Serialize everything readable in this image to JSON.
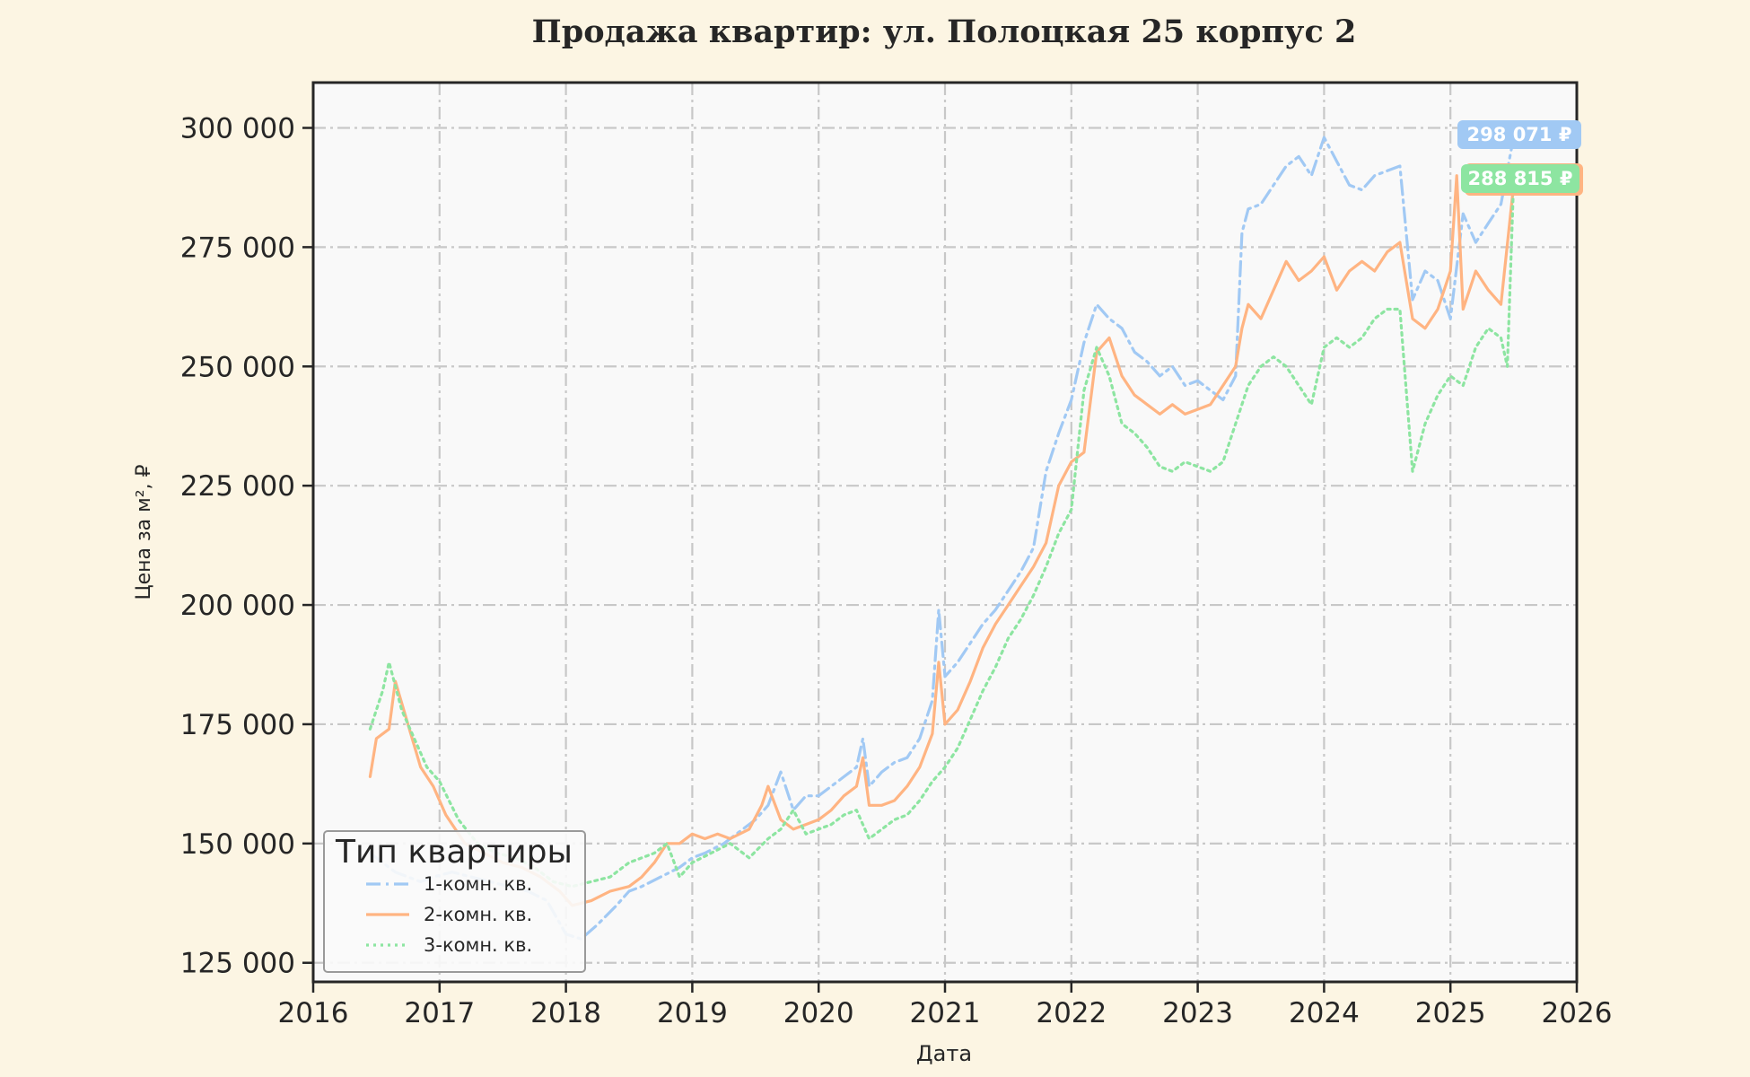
{
  "colors": {
    "background": "#fcf5e3",
    "plot_background": "#f9f9f9",
    "grid": "#c8c8c8",
    "series_1": "#a1c9f4",
    "series_2": "#ffb482",
    "series_3": "#8de5a1"
  },
  "chart_data": {
    "type": "line",
    "title": "Продажа квартир: ул. Полоцкая 25 корпус 2",
    "xlabel": "Дата",
    "ylabel": "Цена за м², ₽",
    "xlim": [
      2016,
      2026
    ],
    "ylim": [
      121000,
      309500
    ],
    "x_ticks": [
      "2016",
      "2017",
      "2018",
      "2019",
      "2020",
      "2021",
      "2022",
      "2023",
      "2024",
      "2025",
      "2026"
    ],
    "y_ticks": [
      {
        "value": 125000,
        "label": "125 000"
      },
      {
        "value": 150000,
        "label": "150 000"
      },
      {
        "value": 175000,
        "label": "175 000"
      },
      {
        "value": 200000,
        "label": "200 000"
      },
      {
        "value": 225000,
        "label": "225 000"
      },
      {
        "value": 250000,
        "label": "250 000"
      },
      {
        "value": 275000,
        "label": "275 000"
      },
      {
        "value": 300000,
        "label": "300 000"
      }
    ],
    "grid": true,
    "legend": {
      "title": "Тип квартиры",
      "position": "lower-left"
    },
    "annotations": [
      {
        "label": "298 071 ₽",
        "series": "1-комн. кв."
      },
      {
        "label": "288 815 ₽",
        "series": "3-комн. кв."
      }
    ],
    "series": [
      {
        "name": "1-комн. кв.",
        "style": "dashdot",
        "x": [
          2016.45,
          2016.55,
          2016.65,
          2016.75,
          2016.85,
          2016.95,
          2017.1,
          2017.25,
          2017.4,
          2017.55,
          2017.7,
          2017.85,
          2018.0,
          2018.12,
          2018.25,
          2018.4,
          2018.5,
          2018.6,
          2018.75,
          2018.9,
          2019.0,
          2019.1,
          2019.25,
          2019.4,
          2019.5,
          2019.6,
          2019.7,
          2019.8,
          2019.9,
          2020.0,
          2020.1,
          2020.2,
          2020.3,
          2020.35,
          2020.4,
          2020.5,
          2020.6,
          2020.7,
          2020.8,
          2020.9,
          2020.95,
          2021.0,
          2021.1,
          2021.2,
          2021.3,
          2021.4,
          2021.5,
          2021.6,
          2021.7,
          2021.8,
          2021.9,
          2022.0,
          2022.1,
          2022.2,
          2022.3,
          2022.4,
          2022.5,
          2022.6,
          2022.7,
          2022.8,
          2022.9,
          2023.0,
          2023.1,
          2023.2,
          2023.3,
          2023.35,
          2023.4,
          2023.5,
          2023.6,
          2023.7,
          2023.8,
          2023.9,
          2024.0,
          2024.1,
          2024.2,
          2024.3,
          2024.4,
          2024.5,
          2024.6,
          2024.7,
          2024.8,
          2024.9,
          2025.0,
          2025.1,
          2025.2,
          2025.3,
          2025.4,
          2025.5
        ],
        "values": [
          148000,
          146000,
          144000,
          143000,
          142000,
          143000,
          144000,
          143000,
          142000,
          141000,
          140000,
          138000,
          131000,
          130000,
          133000,
          137000,
          140000,
          141000,
          143000,
          145000,
          147000,
          148000,
          150000,
          153000,
          155000,
          158000,
          165000,
          157000,
          160000,
          160000,
          162000,
          164000,
          166000,
          172000,
          162000,
          165000,
          167000,
          168000,
          172000,
          180000,
          199000,
          185000,
          188000,
          192000,
          196000,
          199000,
          203000,
          207000,
          212000,
          228000,
          236000,
          243000,
          255000,
          263000,
          260000,
          258000,
          253000,
          251000,
          248000,
          250000,
          246000,
          247000,
          245000,
          243000,
          248000,
          278000,
          283000,
          284000,
          288000,
          292000,
          294000,
          290000,
          298000,
          293000,
          288000,
          287000,
          290000,
          291000,
          292000,
          264000,
          270000,
          268000,
          260000,
          282000,
          276000,
          280000,
          284000,
          298071
        ]
      },
      {
        "name": "2-комн. кв.",
        "style": "solid",
        "x": [
          2016.45,
          2016.5,
          2016.6,
          2016.65,
          2016.75,
          2016.85,
          2016.95,
          2017.05,
          2017.2,
          2017.35,
          2017.5,
          2017.65,
          2017.8,
          2017.95,
          2018.05,
          2018.2,
          2018.35,
          2018.5,
          2018.6,
          2018.7,
          2018.8,
          2018.9,
          2019.0,
          2019.1,
          2019.2,
          2019.3,
          2019.45,
          2019.55,
          2019.6,
          2019.7,
          2019.8,
          2019.9,
          2020.0,
          2020.1,
          2020.2,
          2020.3,
          2020.35,
          2020.4,
          2020.5,
          2020.6,
          2020.7,
          2020.8,
          2020.9,
          2020.95,
          2021.0,
          2021.1,
          2021.2,
          2021.3,
          2021.4,
          2021.5,
          2021.6,
          2021.7,
          2021.8,
          2021.9,
          2022.0,
          2022.1,
          2022.2,
          2022.3,
          2022.4,
          2022.5,
          2022.6,
          2022.7,
          2022.8,
          2022.9,
          2023.0,
          2023.1,
          2023.2,
          2023.3,
          2023.35,
          2023.4,
          2023.5,
          2023.6,
          2023.7,
          2023.8,
          2023.9,
          2024.0,
          2024.1,
          2024.2,
          2024.3,
          2024.4,
          2024.5,
          2024.6,
          2024.7,
          2024.8,
          2024.9,
          2025.0,
          2025.05,
          2025.1,
          2025.2,
          2025.3,
          2025.4,
          2025.5
        ],
        "values": [
          164000,
          172000,
          174000,
          184000,
          175000,
          166000,
          162000,
          156000,
          150000,
          148000,
          146000,
          145000,
          143000,
          140000,
          137000,
          138000,
          140000,
          141000,
          143000,
          146000,
          150000,
          150000,
          152000,
          151000,
          152000,
          151000,
          153000,
          158000,
          162000,
          155000,
          153000,
          154000,
          155000,
          157000,
          160000,
          162000,
          168000,
          158000,
          158000,
          159000,
          162000,
          166000,
          173000,
          188000,
          175000,
          178000,
          184000,
          191000,
          196000,
          200000,
          204000,
          208000,
          213000,
          225000,
          230000,
          232000,
          253000,
          256000,
          248000,
          244000,
          242000,
          240000,
          242000,
          240000,
          241000,
          242000,
          246000,
          250000,
          258000,
          263000,
          260000,
          266000,
          272000,
          268000,
          270000,
          273000,
          266000,
          270000,
          272000,
          270000,
          274000,
          276000,
          260000,
          258000,
          262000,
          270000,
          290000,
          262000,
          270000,
          266000,
          263000,
          288000
        ]
      },
      {
        "name": "3-комн. кв.",
        "style": "dotted",
        "x": [
          2016.45,
          2016.55,
          2016.6,
          2016.7,
          2016.8,
          2016.9,
          2017.0,
          2017.15,
          2017.3,
          2017.45,
          2017.6,
          2017.75,
          2017.9,
          2018.05,
          2018.2,
          2018.35,
          2018.5,
          2018.6,
          2018.7,
          2018.8,
          2018.9,
          2019.0,
          2019.15,
          2019.3,
          2019.45,
          2019.6,
          2019.7,
          2019.8,
          2019.9,
          2020.0,
          2020.1,
          2020.2,
          2020.3,
          2020.4,
          2020.5,
          2020.6,
          2020.7,
          2020.8,
          2020.9,
          2021.0,
          2021.1,
          2021.2,
          2021.3,
          2021.4,
          2021.5,
          2021.6,
          2021.7,
          2021.8,
          2021.9,
          2022.0,
          2022.1,
          2022.2,
          2022.3,
          2022.4,
          2022.5,
          2022.6,
          2022.7,
          2022.8,
          2022.9,
          2023.0,
          2023.1,
          2023.2,
          2023.3,
          2023.4,
          2023.5,
          2023.6,
          2023.7,
          2023.8,
          2023.9,
          2024.0,
          2024.1,
          2024.2,
          2024.3,
          2024.4,
          2024.5,
          2024.6,
          2024.7,
          2024.8,
          2024.9,
          2025.0,
          2025.1,
          2025.2,
          2025.3,
          2025.4,
          2025.45,
          2025.5
        ],
        "values": [
          174000,
          182000,
          188000,
          178000,
          172000,
          166000,
          163000,
          155000,
          150000,
          148000,
          147000,
          145000,
          142000,
          141000,
          142000,
          143000,
          146000,
          147000,
          148000,
          150000,
          143000,
          146000,
          148000,
          150000,
          147000,
          151000,
          153000,
          157000,
          152000,
          153000,
          154000,
          156000,
          157000,
          151000,
          153000,
          155000,
          156000,
          159000,
          163000,
          166000,
          170000,
          176000,
          182000,
          187000,
          193000,
          197000,
          202000,
          208000,
          215000,
          220000,
          245000,
          254000,
          248000,
          238000,
          236000,
          233000,
          229000,
          228000,
          230000,
          229000,
          228000,
          230000,
          238000,
          246000,
          250000,
          252000,
          250000,
          246000,
          242000,
          254000,
          256000,
          254000,
          256000,
          260000,
          262000,
          262000,
          228000,
          238000,
          244000,
          248000,
          246000,
          254000,
          258000,
          256000,
          250000,
          288815
        ]
      }
    ]
  }
}
